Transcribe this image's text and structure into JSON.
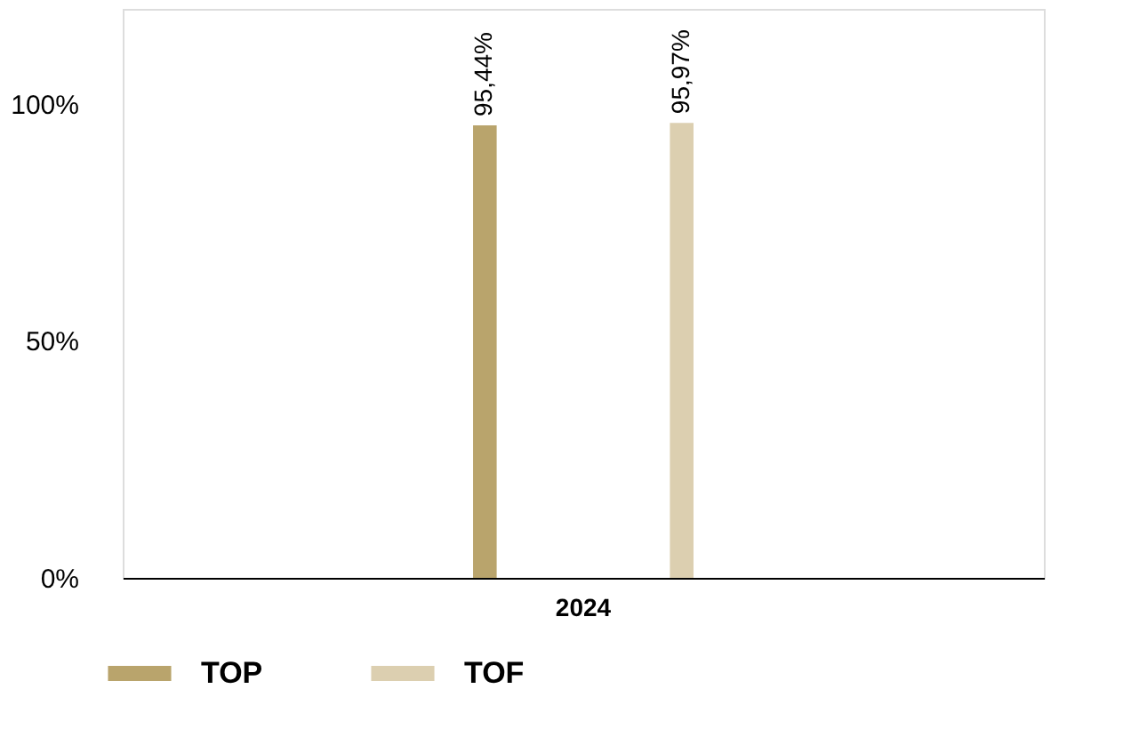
{
  "chart_data": {
    "type": "bar",
    "categories": [
      "2024"
    ],
    "series": [
      {
        "name": "TOP",
        "color": "#b9a46c",
        "values": [
          95.44
        ],
        "value_labels": [
          "95,44%"
        ]
      },
      {
        "name": "TOF",
        "color": "#dccfb0",
        "values": [
          95.97
        ],
        "value_labels": [
          "95,97%"
        ]
      }
    ],
    "ylim": [
      0,
      120
    ],
    "yticks": [
      {
        "value": 0,
        "label": "0%"
      },
      {
        "value": 50,
        "label": "50%"
      },
      {
        "value": 100,
        "label": "100%"
      }
    ],
    "grid": false,
    "legend": "bottom"
  }
}
